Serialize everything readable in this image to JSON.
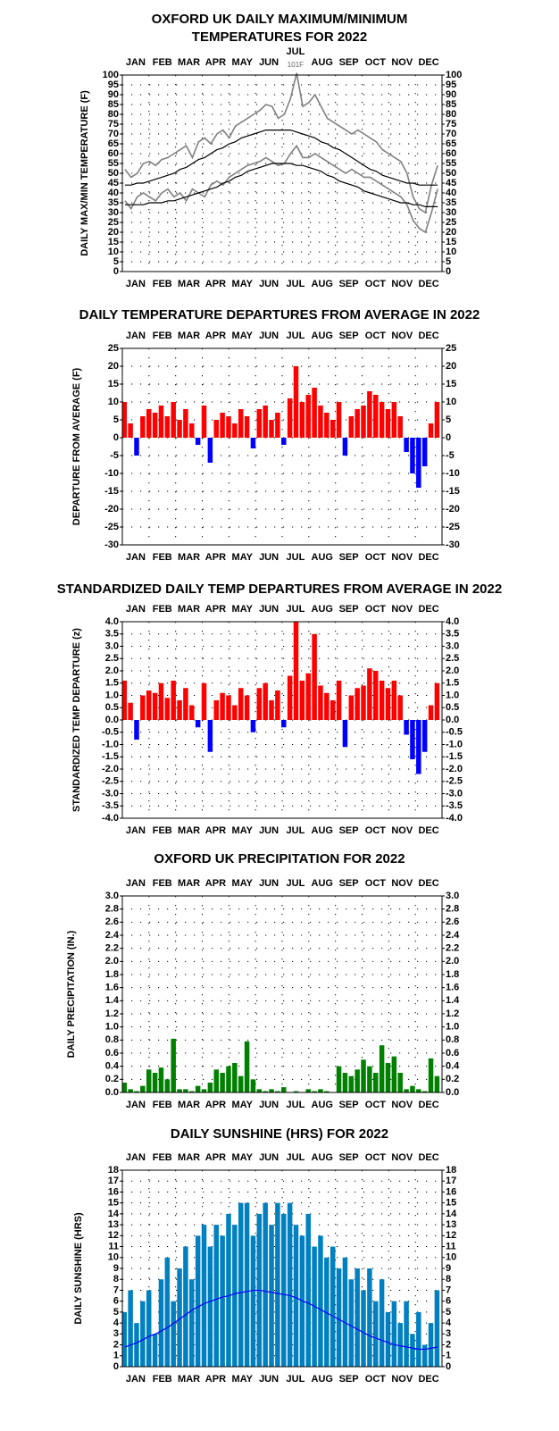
{
  "charts": [
    {
      "type": "line",
      "title": [
        "OXFORD UK DAILY MAXIMUM/MINIMUM",
        "TEMPERATURES FOR 2022"
      ],
      "ylabel": "DAILY MAX/MIN TEMPERATURE (F)",
      "categories": [
        "JAN",
        "FEB",
        "MAR",
        "APR",
        "MAY",
        "JUN",
        "JUL",
        "AUG",
        "SEP",
        "OCT",
        "NOV",
        "DEC"
      ],
      "annotation": {
        "month": "JUL",
        "text": "101F"
      },
      "xlim": [
        1,
        366
      ],
      "ylim": [
        0,
        100
      ],
      "yticks": [
        0,
        5,
        10,
        15,
        20,
        25,
        30,
        35,
        40,
        45,
        50,
        55,
        60,
        65,
        70,
        75,
        80,
        85,
        90,
        95,
        100
      ],
      "x": [
        4,
        11,
        18,
        25,
        32,
        39,
        46,
        53,
        60,
        67,
        74,
        81,
        88,
        95,
        102,
        109,
        116,
        123,
        130,
        137,
        144,
        151,
        158,
        165,
        172,
        179,
        186,
        193,
        200,
        207,
        214,
        221,
        228,
        235,
        242,
        249,
        256,
        263,
        270,
        277,
        284,
        291,
        298,
        305,
        312,
        319,
        326,
        333,
        340,
        347,
        354,
        361
      ],
      "series": [
        {
          "name": "max",
          "color": "#808080",
          "values": [
            52,
            48,
            50,
            55,
            56,
            54,
            57,
            58,
            60,
            62,
            64,
            58,
            66,
            68,
            65,
            70,
            72,
            68,
            74,
            76,
            78,
            80,
            82,
            85,
            84,
            78,
            80,
            88,
            101,
            84,
            86,
            90,
            84,
            78,
            76,
            74,
            72,
            70,
            72,
            70,
            68,
            66,
            62,
            60,
            58,
            56,
            50,
            38,
            32,
            30,
            44,
            54
          ]
        },
        {
          "name": "min",
          "color": "#808080",
          "values": [
            36,
            32,
            38,
            40,
            38,
            36,
            40,
            42,
            38,
            40,
            36,
            42,
            40,
            38,
            44,
            46,
            44,
            48,
            50,
            52,
            54,
            55,
            56,
            58,
            56,
            54,
            55,
            60,
            64,
            58,
            58,
            60,
            58,
            56,
            54,
            52,
            50,
            52,
            50,
            48,
            48,
            46,
            44,
            42,
            40,
            38,
            34,
            26,
            22,
            20,
            30,
            42
          ]
        },
        {
          "name": "normal max",
          "color": "#000000",
          "values": [
            44,
            44,
            45,
            45,
            46,
            47,
            48,
            49,
            50,
            52,
            53,
            55,
            57,
            58,
            60,
            62,
            63,
            65,
            66,
            68,
            69,
            70,
            71,
            72,
            72,
            72,
            72,
            72,
            71,
            70,
            69,
            68,
            66,
            65,
            63,
            62,
            60,
            58,
            56,
            54,
            52,
            51,
            49,
            48,
            47,
            46,
            45,
            45,
            44,
            44,
            44,
            44
          ]
        },
        {
          "name": "normal min",
          "color": "#000000",
          "values": [
            34,
            34,
            34,
            34,
            35,
            35,
            35,
            36,
            36,
            37,
            38,
            39,
            40,
            41,
            42,
            43,
            45,
            46,
            48,
            49,
            51,
            52,
            53,
            54,
            55,
            55,
            55,
            55,
            54,
            54,
            53,
            52,
            51,
            49,
            48,
            46,
            45,
            44,
            43,
            41,
            40,
            39,
            38,
            37,
            36,
            35,
            35,
            34,
            34,
            33,
            33,
            33
          ]
        }
      ]
    },
    {
      "type": "bar",
      "title": [
        "DAILY TEMPERATURE DEPARTURES FROM AVERAGE IN 2022"
      ],
      "ylabel": "DEPARTURE FROM AVERAGE (F)",
      "categories": [
        "JAN",
        "FEB",
        "MAR",
        "APR",
        "MAY",
        "JUN",
        "JUL",
        "AUG",
        "SEP",
        "OCT",
        "NOV",
        "DEC"
      ],
      "xlim": [
        1,
        366
      ],
      "ylim": [
        -30,
        25
      ],
      "yticks": [
        -30,
        -25,
        -20,
        -15,
        -10,
        -5,
        0,
        5,
        10,
        15,
        20,
        25
      ],
      "positive_color": "#ff0000",
      "negative_color": "#0000ff",
      "x": [
        4,
        11,
        18,
        25,
        32,
        39,
        46,
        53,
        60,
        67,
        74,
        81,
        88,
        95,
        102,
        109,
        116,
        123,
        130,
        137,
        144,
        151,
        158,
        165,
        172,
        179,
        186,
        193,
        200,
        207,
        214,
        221,
        228,
        235,
        242,
        249,
        256,
        263,
        270,
        277,
        284,
        291,
        298,
        305,
        312,
        319,
        326,
        333,
        340,
        347,
        354,
        361
      ],
      "series": [
        {
          "name": "departure",
          "values": [
            10,
            4,
            -5,
            6,
            8,
            7,
            9,
            6,
            10,
            5,
            8,
            4,
            -2,
            9,
            -7,
            5,
            7,
            6,
            4,
            8,
            6,
            -3,
            8,
            9,
            5,
            7,
            -2,
            11,
            20,
            10,
            12,
            14,
            9,
            7,
            5,
            10,
            -5,
            6,
            8,
            9,
            13,
            12,
            10,
            8,
            10,
            6,
            -4,
            -10,
            -14,
            -8,
            4,
            10
          ]
        }
      ]
    },
    {
      "type": "bar",
      "title": [
        "STANDARDIZED DAILY TEMP DEPARTURES FROM AVERAGE IN 2022"
      ],
      "ylabel": "STANDARDIZED TEMP DEPARTURE (z)",
      "categories": [
        "JAN",
        "FEB",
        "MAR",
        "APR",
        "MAY",
        "JUN",
        "JUL",
        "AUG",
        "SEP",
        "OCT",
        "NOV",
        "DEC"
      ],
      "xlim": [
        1,
        366
      ],
      "ylim": [
        -4,
        4
      ],
      "yticks": [
        {
          "value": -4,
          "label": "-4.0"
        },
        -3.5,
        {
          "value": -3,
          "label": "-3.0"
        },
        -2.5,
        {
          "value": -2,
          "label": "-2.0"
        },
        -1.5,
        {
          "value": -1,
          "label": "-1.0"
        },
        -0.5,
        {
          "value": 0,
          "label": "0.0"
        },
        0.5,
        {
          "value": 1,
          "label": "1.0"
        },
        1.5,
        {
          "value": 2,
          "label": "2.0"
        },
        2.5,
        {
          "value": 3,
          "label": "3.0"
        },
        3.5,
        {
          "value": 4,
          "label": "4.0"
        }
      ],
      "positive_color": "#ff0000",
      "negative_color": "#0000ff",
      "x": [
        4,
        11,
        18,
        25,
        32,
        39,
        46,
        53,
        60,
        67,
        74,
        81,
        88,
        95,
        102,
        109,
        116,
        123,
        130,
        137,
        144,
        151,
        158,
        165,
        172,
        179,
        186,
        193,
        200,
        207,
        214,
        221,
        228,
        235,
        242,
        249,
        256,
        263,
        270,
        277,
        284,
        291,
        298,
        305,
        312,
        319,
        326,
        333,
        340,
        347,
        354,
        361
      ],
      "series": [
        {
          "name": "z",
          "values": [
            1.6,
            0.7,
            -0.8,
            1.0,
            1.2,
            1.1,
            1.5,
            0.9,
            1.6,
            0.8,
            1.3,
            0.6,
            -0.3,
            1.5,
            -1.3,
            0.8,
            1.1,
            1.0,
            0.6,
            1.3,
            1.0,
            -0.5,
            1.3,
            1.5,
            0.8,
            1.2,
            -0.3,
            1.8,
            4.0,
            1.6,
            1.9,
            3.5,
            1.4,
            1.1,
            0.8,
            1.6,
            -1.1,
            1.0,
            1.3,
            1.4,
            2.1,
            2.0,
            1.6,
            1.3,
            1.6,
            1.0,
            -0.6,
            -1.6,
            -2.2,
            -1.3,
            0.6,
            1.5
          ]
        }
      ]
    },
    {
      "type": "bar",
      "title": [
        "OXFORD UK PRECIPITATION FOR 2022"
      ],
      "ylabel": "DAILY PRECIPITATION (IN.)",
      "categories": [
        "JAN",
        "FEB",
        "MAR",
        "APR",
        "MAY",
        "JUN",
        "JUL",
        "AUG",
        "SEP",
        "OCT",
        "NOV",
        "DEC"
      ],
      "xlim": [
        1,
        366
      ],
      "ylim": [
        0,
        3
      ],
      "yticks": [
        {
          "value": 0,
          "label": "0.0"
        },
        0.2,
        0.4,
        0.6,
        0.8,
        {
          "value": 1,
          "label": "1.0"
        },
        1.2,
        1.4,
        1.6,
        1.8,
        {
          "value": 2,
          "label": "2.0"
        },
        2.2,
        2.4,
        2.6,
        2.8,
        {
          "value": 3,
          "label": "3.0"
        }
      ],
      "x": [
        4,
        11,
        18,
        25,
        32,
        39,
        46,
        53,
        60,
        67,
        74,
        81,
        88,
        95,
        102,
        109,
        116,
        123,
        130,
        137,
        144,
        151,
        158,
        165,
        172,
        179,
        186,
        193,
        200,
        207,
        214,
        221,
        228,
        235,
        242,
        249,
        256,
        263,
        270,
        277,
        284,
        291,
        298,
        305,
        312,
        319,
        326,
        333,
        340,
        347,
        354,
        361
      ],
      "series": [
        {
          "name": "precipitation",
          "color": "#008000",
          "values": [
            0.15,
            0.05,
            0.02,
            0.1,
            0.35,
            0.3,
            0.38,
            0.2,
            0.82,
            0.05,
            0.05,
            0.02,
            0.1,
            0.05,
            0.15,
            0.35,
            0.3,
            0.4,
            0.45,
            0.25,
            0.78,
            0.2,
            0.05,
            0.02,
            0.05,
            0.02,
            0.08,
            0.0,
            0.02,
            0.0,
            0.05,
            0.02,
            0.05,
            0.02,
            0.0,
            0.4,
            0.3,
            0.25,
            0.35,
            0.5,
            0.4,
            0.3,
            0.72,
            0.45,
            0.55,
            0.3,
            0.05,
            0.1,
            0.05,
            0.02,
            0.52,
            0.25
          ]
        }
      ]
    },
    {
      "type": "bar",
      "title": [
        "DAILY SUNSHINE (HRS) FOR 2022"
      ],
      "ylabel": "DAILY SUNSHINE (HRS)",
      "categories": [
        "JAN",
        "FEB",
        "MAR",
        "APR",
        "MAY",
        "JUN",
        "JUL",
        "AUG",
        "SEP",
        "OCT",
        "NOV",
        "DEC"
      ],
      "xlim": [
        1,
        366
      ],
      "ylim": [
        0,
        18
      ],
      "yticks": [
        0,
        1,
        2,
        3,
        4,
        5,
        6,
        7,
        8,
        9,
        10,
        11,
        12,
        13,
        14,
        15,
        16,
        17,
        18
      ],
      "x": [
        4,
        11,
        18,
        25,
        32,
        39,
        46,
        53,
        60,
        67,
        74,
        81,
        88,
        95,
        102,
        109,
        116,
        123,
        130,
        137,
        144,
        151,
        158,
        165,
        172,
        179,
        186,
        193,
        200,
        207,
        214,
        221,
        228,
        235,
        242,
        249,
        256,
        263,
        270,
        277,
        284,
        291,
        298,
        305,
        312,
        319,
        326,
        333,
        340,
        347,
        354,
        361
      ],
      "series": [
        {
          "name": "sunshine",
          "color": "#0080c0",
          "values": [
            5,
            7,
            4,
            6,
            7,
            3,
            8,
            10,
            6,
            9,
            11,
            8,
            12,
            13,
            11,
            13,
            12,
            14,
            13,
            15,
            15,
            12,
            14,
            15,
            13,
            15,
            14,
            15,
            13,
            12,
            14,
            11,
            12,
            10,
            11,
            9,
            10,
            8,
            9,
            7,
            9,
            6,
            8,
            5,
            6,
            4,
            6,
            3,
            5,
            2,
            4,
            7
          ]
        },
        {
          "name": "normal",
          "type": "line",
          "color": "#0000ff",
          "values": [
            1.8,
            2.0,
            2.2,
            2.5,
            2.8,
            3.0,
            3.3,
            3.6,
            4.0,
            4.4,
            4.8,
            5.2,
            5.5,
            5.8,
            6.0,
            6.2,
            6.4,
            6.5,
            6.7,
            6.8,
            6.9,
            7.0,
            7.0,
            6.9,
            6.8,
            6.7,
            6.6,
            6.5,
            6.3,
            6.0,
            5.8,
            5.5,
            5.2,
            4.9,
            4.6,
            4.3,
            4.0,
            3.7,
            3.4,
            3.1,
            2.8,
            2.6,
            2.4,
            2.2,
            2.0,
            1.9,
            1.8,
            1.7,
            1.6,
            1.6,
            1.7,
            1.8
          ]
        }
      ]
    }
  ]
}
